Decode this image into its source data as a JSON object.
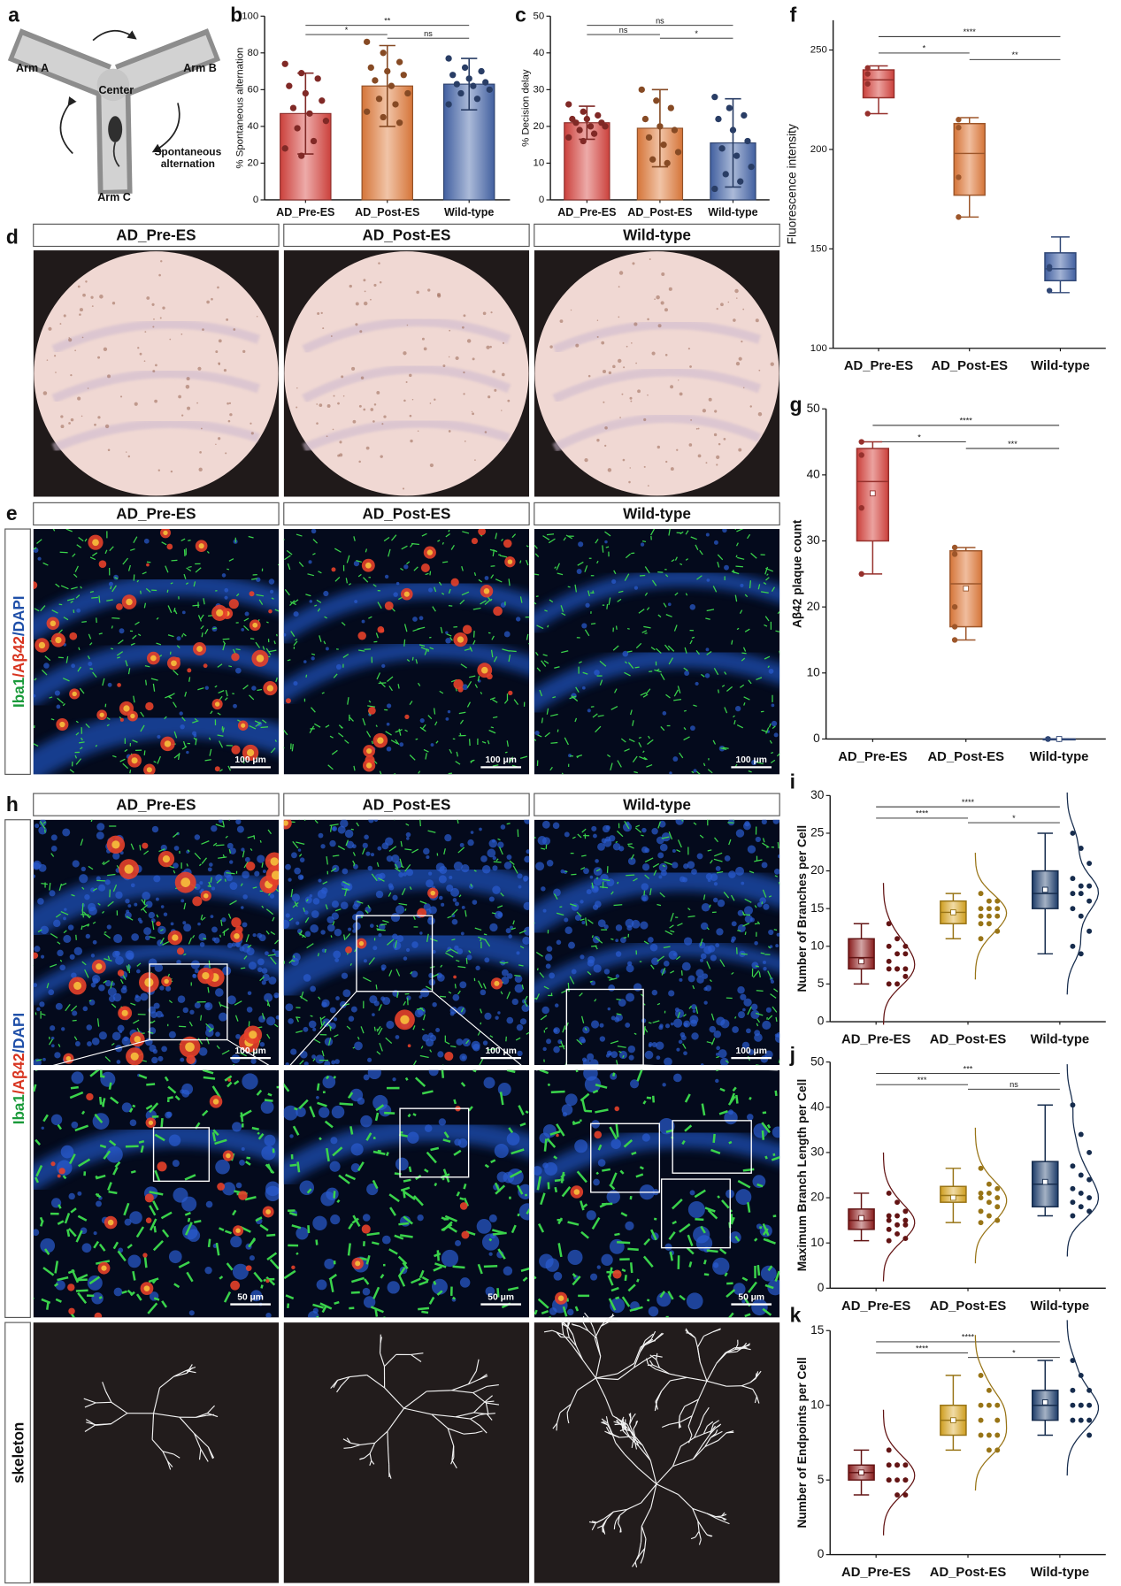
{
  "maze": {
    "panel": "a",
    "arm_labels": [
      "Arm A",
      "Arm B",
      "Arm C"
    ],
    "center_label": "Center",
    "alternation_label": [
      "Spontaneous",
      "alternation"
    ]
  },
  "groups": [
    "AD_Pre-ES",
    "AD_Post-ES",
    "Wild-type"
  ],
  "stain_label": [
    "Iba1",
    "/Aβ42",
    "/DAPI"
  ],
  "histology": {
    "panel": "d"
  },
  "immunofluorescence": {
    "panel": "e",
    "scale_bar": "100 μm"
  },
  "microglia": {
    "panel": "h",
    "scale_bar_overview": "100 μm",
    "scale_bar_zoom": "50 μm",
    "skeleton_label": "skeleton"
  },
  "chart_data": [
    {
      "panel": "b",
      "type": "bar",
      "ylabel": "% Spontaneous alternation",
      "categories": [
        "AD_Pre-ES",
        "AD_Post-ES",
        "Wild-type"
      ],
      "values": [
        47,
        62,
        63
      ],
      "errors": [
        22,
        22,
        14
      ],
      "points": [
        [
          74,
          69,
          66,
          62,
          58,
          54,
          50,
          47,
          43,
          39,
          32,
          28,
          24
        ],
        [
          86,
          80,
          75,
          72,
          70,
          68,
          65,
          62,
          58,
          55,
          52,
          48,
          45,
          42
        ],
        [
          77,
          72,
          70,
          68,
          66,
          64,
          63,
          62,
          60,
          58,
          55,
          52
        ]
      ],
      "colors": [
        "#d6443f",
        "#e07b3c",
        "#4565a8"
      ],
      "ylim": [
        0,
        100
      ],
      "yticks": [
        0,
        20,
        40,
        60,
        80,
        100
      ],
      "annotations": [
        {
          "groups": [
            0,
            2
          ],
          "label": "**"
        },
        {
          "groups": [
            0,
            1
          ],
          "label": "*"
        },
        {
          "groups": [
            1,
            2
          ],
          "label": "ns"
        }
      ]
    },
    {
      "panel": "c",
      "type": "bar",
      "ylabel": "% Decision delay",
      "categories": [
        "AD_Pre-ES",
        "AD_Post-ES",
        "Wild-type"
      ],
      "values": [
        21,
        19.5,
        15.5
      ],
      "errors": [
        4.5,
        10.5,
        12
      ],
      "points": [
        [
          26,
          24,
          23,
          22,
          22,
          21,
          21,
          20,
          20,
          19,
          18,
          17,
          16
        ],
        [
          30,
          27,
          25,
          22,
          20,
          19,
          17,
          15,
          13,
          11,
          10
        ],
        [
          28,
          25,
          23,
          22,
          19,
          16,
          14,
          12,
          9,
          7,
          5,
          3
        ]
      ],
      "colors": [
        "#d6443f",
        "#e07b3c",
        "#4565a8"
      ],
      "ylim": [
        0,
        50
      ],
      "yticks": [
        0,
        10,
        20,
        30,
        40,
        50
      ],
      "annotations": [
        {
          "groups": [
            0,
            2
          ],
          "label": "ns"
        },
        {
          "groups": [
            0,
            1
          ],
          "label": "ns"
        },
        {
          "groups": [
            1,
            2
          ],
          "label": "*"
        }
      ]
    },
    {
      "panel": "f",
      "type": "box",
      "ylabel": "Fluorescence intensity",
      "categories": [
        "AD_Pre-ES",
        "AD_Post-ES",
        "Wild-type"
      ],
      "boxes": [
        {
          "min": 218,
          "q1": 226,
          "median": 235,
          "q3": 240,
          "max": 242,
          "points": [
            241,
            238,
            233,
            218
          ]
        },
        {
          "min": 166,
          "q1": 177,
          "median": 198,
          "q3": 213,
          "max": 216,
          "points": [
            215,
            211,
            186,
            166
          ]
        },
        {
          "min": 128,
          "q1": 134,
          "median": 140,
          "q3": 148,
          "max": 156,
          "points": [
            140,
            141,
            129
          ]
        }
      ],
      "colors": [
        "#d6443f",
        "#e07b3c",
        "#4565a8"
      ],
      "ylim": [
        100,
        265
      ],
      "yticks": [
        100,
        150,
        200,
        250
      ],
      "annotations": [
        {
          "groups": [
            0,
            2
          ],
          "label": "****"
        },
        {
          "groups": [
            0,
            1
          ],
          "label": "*"
        },
        {
          "groups": [
            1,
            2
          ],
          "label": "**"
        }
      ]
    },
    {
      "panel": "g",
      "type": "box",
      "ylabel": "Aβ42 plaque count",
      "categories": [
        "AD_Pre-ES",
        "AD_Post-ES",
        "Wild-type"
      ],
      "boxes": [
        {
          "min": 25,
          "q1": 30,
          "median": 39,
          "q3": 44,
          "max": 45,
          "mean": 37.2,
          "points": [
            45,
            43,
            35,
            25
          ]
        },
        {
          "min": 15,
          "q1": 17,
          "median": 23.5,
          "q3": 28.5,
          "max": 29,
          "mean": 22.8,
          "points": [
            29,
            28,
            20,
            17,
            15
          ]
        },
        {
          "min": 0,
          "q1": 0,
          "median": 0,
          "q3": 0,
          "max": 0,
          "mean": 0,
          "points": [
            0,
            0,
            0
          ]
        }
      ],
      "colors": [
        "#d6443f",
        "#e07b3c",
        "#4565a8"
      ],
      "ylim": [
        0,
        50
      ],
      "yticks": [
        0,
        10,
        20,
        30,
        40,
        50
      ],
      "annotations": [
        {
          "groups": [
            0,
            2
          ],
          "label": "****"
        },
        {
          "groups": [
            0,
            1
          ],
          "label": "*"
        },
        {
          "groups": [
            1,
            2
          ],
          "label": "***"
        }
      ]
    },
    {
      "panel": "i",
      "type": "box",
      "violin": true,
      "ylabel": "Number of Branches per Cell",
      "categories": [
        "AD_Pre-ES",
        "AD_Post-ES",
        "Wild-type"
      ],
      "boxes": [
        {
          "min": 5,
          "q1": 7,
          "median": 8.5,
          "q3": 11,
          "max": 13,
          "mean": 8,
          "points": [
            13,
            11,
            10,
            10,
            9,
            9,
            8,
            7,
            7,
            7,
            7,
            6,
            5,
            5
          ]
        },
        {
          "min": 11,
          "q1": 13,
          "median": 14.5,
          "q3": 16,
          "max": 17,
          "mean": 14.5,
          "points": [
            17,
            16,
            16,
            15,
            15,
            15,
            14,
            14,
            14,
            13,
            13,
            12,
            11
          ]
        },
        {
          "min": 9,
          "q1": 15,
          "median": 17,
          "q3": 20,
          "max": 25,
          "mean": 17.5,
          "points": [
            25,
            23,
            21,
            19,
            18,
            18,
            17,
            17,
            16,
            15,
            14,
            12,
            10,
            9
          ]
        }
      ],
      "colors": [
        "#8e1c1c",
        "#d9a520",
        "#1f3f6e"
      ],
      "ylim": [
        0,
        30
      ],
      "yticks": [
        0,
        5,
        10,
        15,
        20,
        25,
        30
      ],
      "annotations": [
        {
          "groups": [
            0,
            2
          ],
          "label": "****"
        },
        {
          "groups": [
            0,
            1
          ],
          "label": "****"
        },
        {
          "groups": [
            1,
            2
          ],
          "label": "*"
        }
      ]
    },
    {
      "panel": "j",
      "type": "box",
      "violin": true,
      "ylabel": "Maximum Branch Length per Cell",
      "categories": [
        "AD_Pre-ES",
        "AD_Post-ES",
        "Wild-type"
      ],
      "boxes": [
        {
          "min": 10.5,
          "q1": 13,
          "median": 15,
          "q3": 17.5,
          "max": 21,
          "mean": 15.5,
          "points": [
            21,
            19,
            17,
            16,
            16,
            15,
            15,
            14,
            14,
            13,
            12,
            11,
            10.5
          ]
        },
        {
          "min": 14.5,
          "q1": 19,
          "median": 20.5,
          "q3": 22.5,
          "max": 26.5,
          "mean": 20,
          "points": [
            26.5,
            23,
            22,
            21,
            21,
            20,
            20,
            19,
            18,
            17,
            16,
            15,
            14.5
          ]
        },
        {
          "min": 16,
          "q1": 18,
          "median": 23,
          "q3": 28,
          "max": 40.5,
          "mean": 23.5,
          "points": [
            40.5,
            34,
            30,
            27,
            25,
            24,
            22,
            21,
            20,
            19,
            18,
            17,
            16
          ]
        }
      ],
      "colors": [
        "#8e1c1c",
        "#d9a520",
        "#1f3f6e"
      ],
      "ylim": [
        0,
        50
      ],
      "yticks": [
        0,
        10,
        20,
        30,
        40,
        50
      ],
      "annotations": [
        {
          "groups": [
            0,
            2
          ],
          "label": "***"
        },
        {
          "groups": [
            0,
            1
          ],
          "label": "***"
        },
        {
          "groups": [
            1,
            2
          ],
          "label": "ns"
        }
      ]
    },
    {
      "panel": "k",
      "type": "box",
      "violin": true,
      "ylabel": "Number of Endpoints per Cell",
      "categories": [
        "AD_Pre-ES",
        "AD_Post-ES",
        "Wild-type"
      ],
      "boxes": [
        {
          "min": 4,
          "q1": 5,
          "median": 5.5,
          "q3": 6,
          "max": 7,
          "mean": 5.5,
          "points": [
            7,
            6,
            6,
            6,
            6,
            5,
            5,
            5,
            5,
            5,
            4,
            4
          ]
        },
        {
          "min": 7,
          "q1": 8,
          "median": 9,
          "q3": 10,
          "max": 12,
          "mean": 9,
          "points": [
            12,
            11,
            10,
            10,
            10,
            9,
            9,
            8,
            8,
            8,
            7,
            7
          ]
        },
        {
          "min": 8,
          "q1": 9,
          "median": 10,
          "q3": 11,
          "max": 13,
          "mean": 10.2,
          "points": [
            13,
            12,
            11,
            11,
            10,
            10,
            10,
            10,
            9,
            9,
            9,
            8
          ]
        }
      ],
      "colors": [
        "#8e1c1c",
        "#d9a520",
        "#1f3f6e"
      ],
      "ylim": [
        0,
        15
      ],
      "yticks": [
        0,
        5,
        10,
        15
      ],
      "annotations": [
        {
          "groups": [
            0,
            2
          ],
          "label": "****"
        },
        {
          "groups": [
            0,
            1
          ],
          "label": "****"
        },
        {
          "groups": [
            1,
            2
          ],
          "label": "*"
        }
      ]
    }
  ]
}
